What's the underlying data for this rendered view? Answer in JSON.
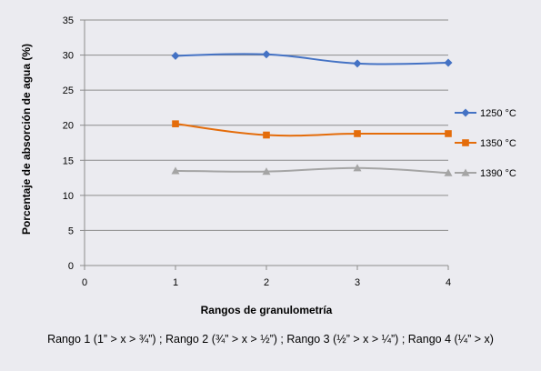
{
  "chart_data": {
    "type": "line",
    "xlabel": "Rangos de granulometría",
    "ylabel": "Porcentaje de absorción de agua (%)",
    "xlim": [
      0,
      4
    ],
    "ylim": [
      0,
      35
    ],
    "xticks": [
      0,
      1,
      2,
      3,
      4
    ],
    "yticks": [
      0,
      5,
      10,
      15,
      20,
      25,
      30,
      35
    ],
    "x": [
      1,
      2,
      3,
      4
    ],
    "grid": "horizontal",
    "legend_position": "right",
    "series": [
      {
        "name": "1250 °C",
        "values": [
          29.9,
          30.1,
          28.8,
          28.9
        ],
        "color": "#4472c4",
        "marker": "diamond"
      },
      {
        "name": "1350 °C",
        "values": [
          20.2,
          18.6,
          18.8,
          18.8
        ],
        "color": "#e46c0a",
        "marker": "square"
      },
      {
        "name": "1390 °C",
        "values": [
          13.5,
          13.4,
          13.9,
          13.2
        ],
        "color": "#a5a5a5",
        "marker": "triangle"
      }
    ]
  },
  "caption": "Rango  1 (1” > x > ¾”) ; Rango 2  (¾” > x > ½”) ; Rango 3  (½” > x > ¼”) ; Rango 4  (¼” > x)"
}
